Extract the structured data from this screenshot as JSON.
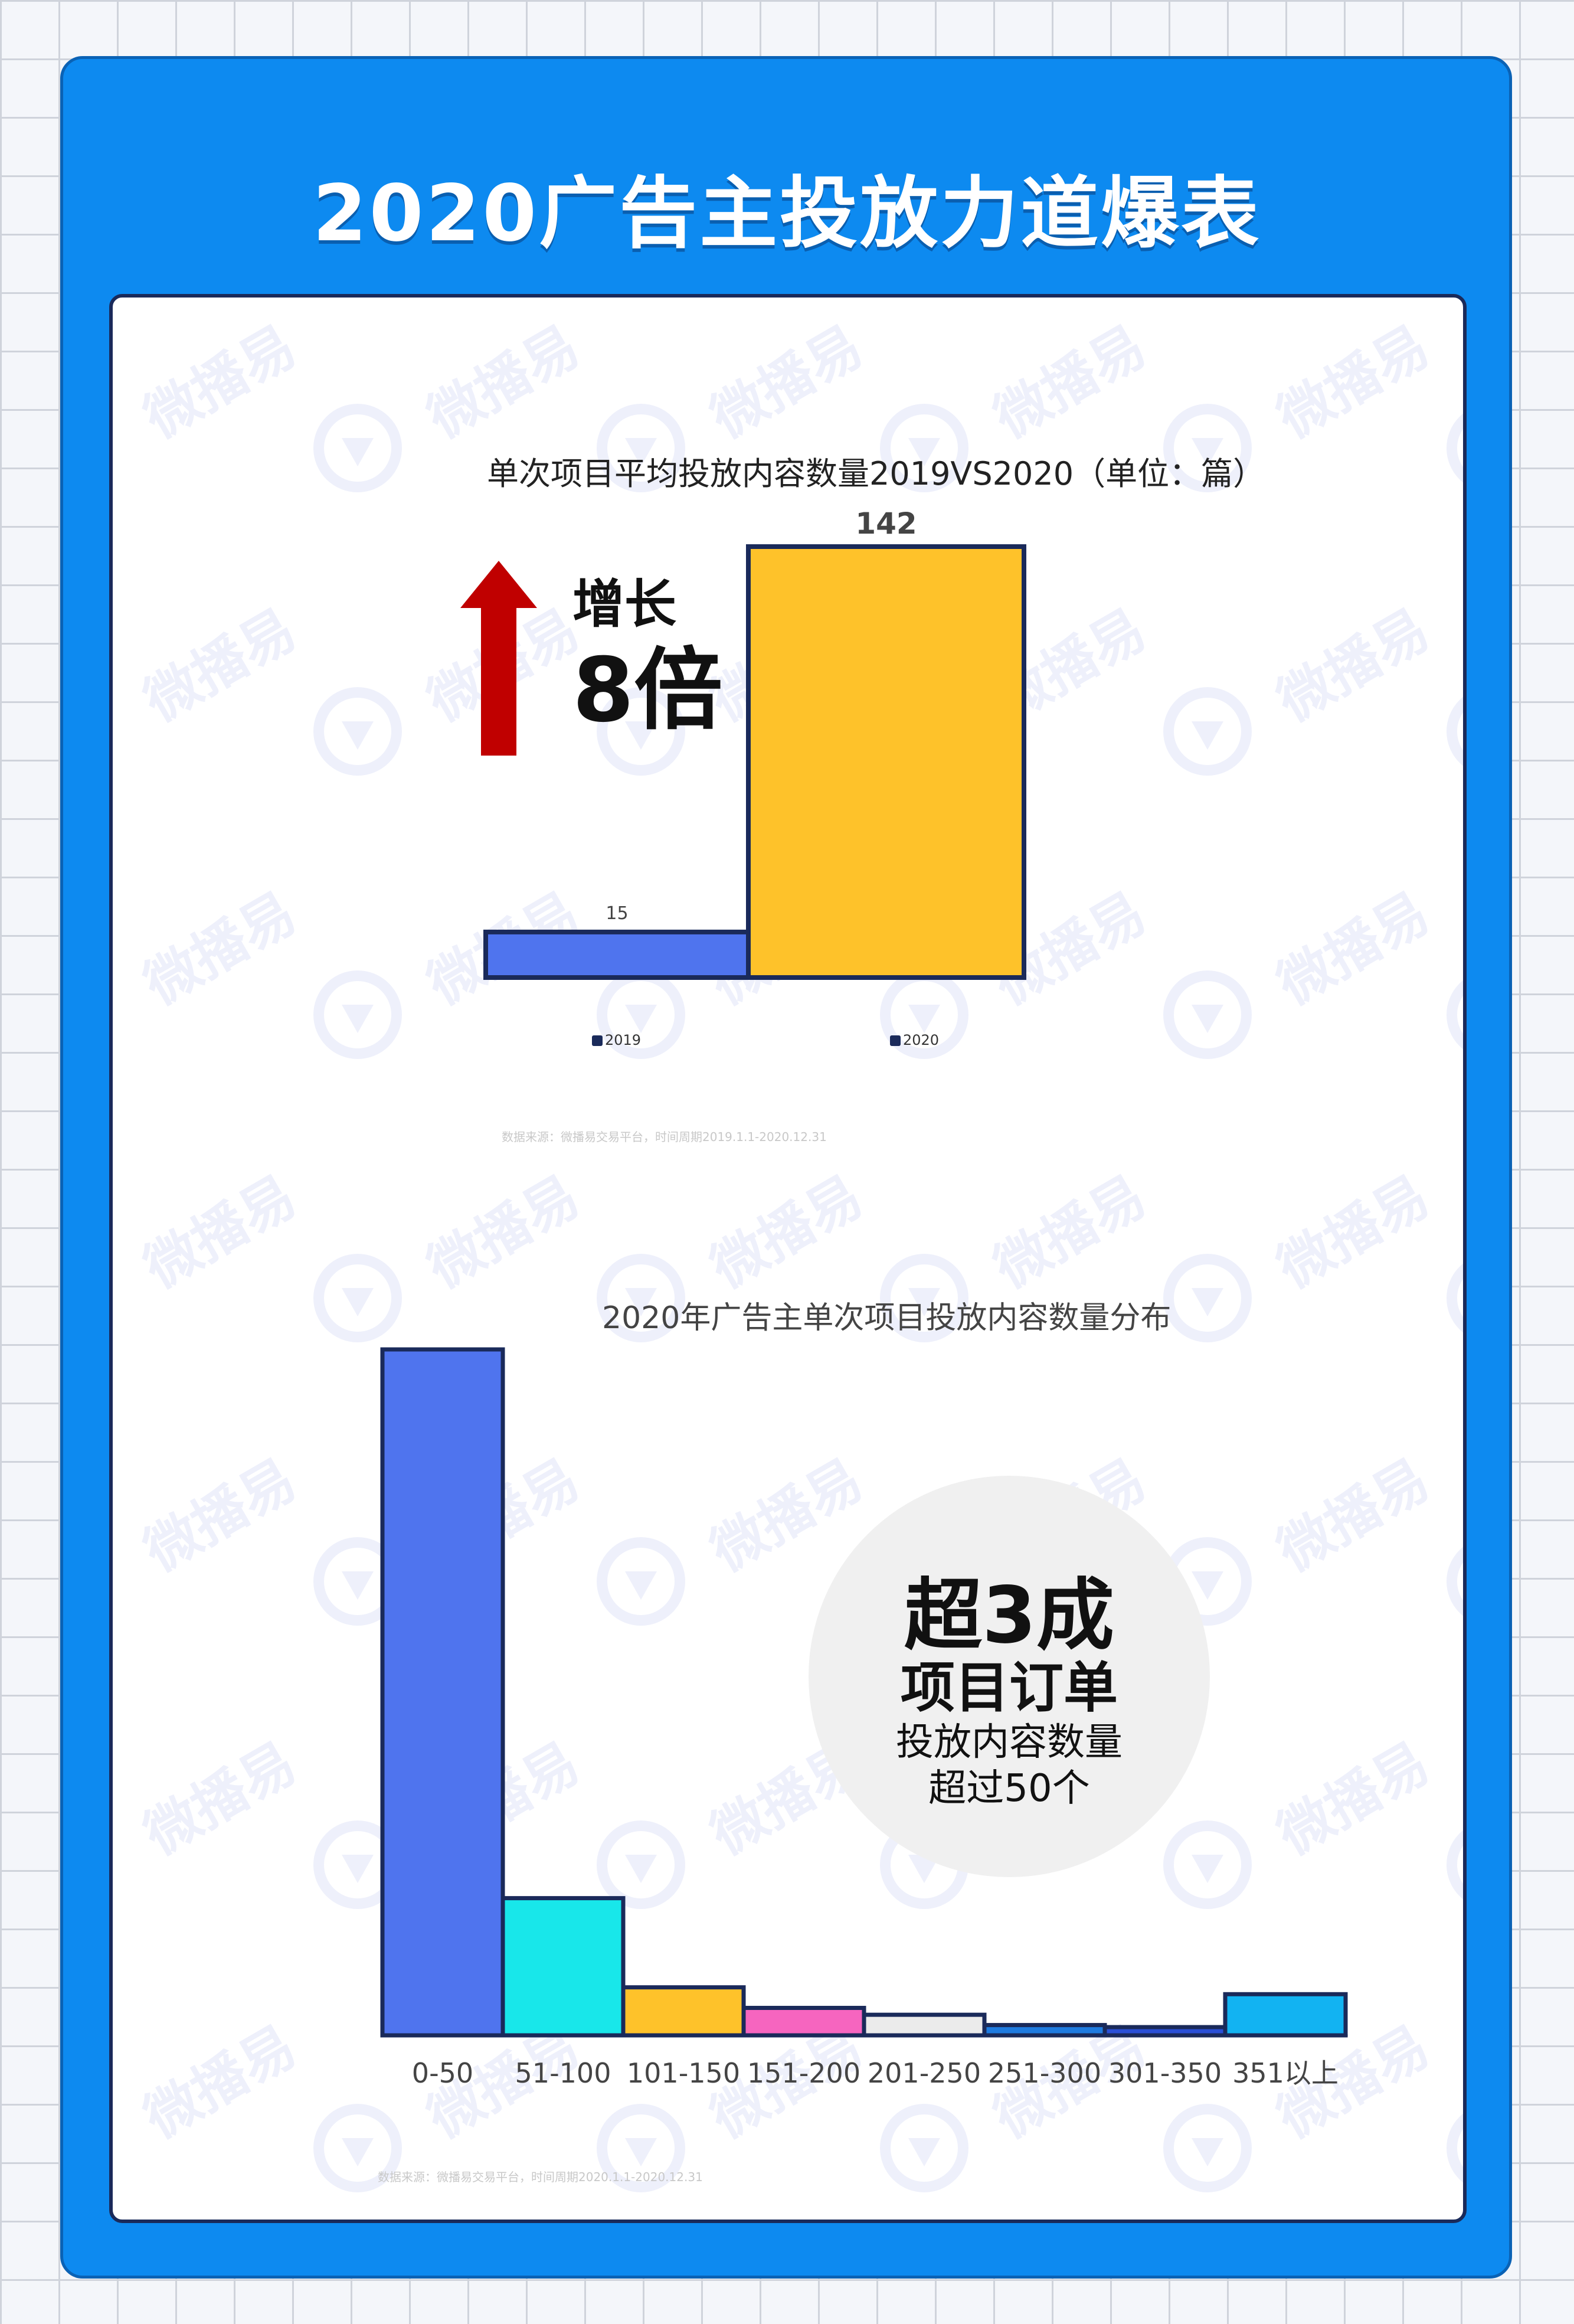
{
  "page": {
    "title": "2020广告主投放力道爆表"
  },
  "watermark": {
    "text": "微播易"
  },
  "chart_data": [
    {
      "type": "bar",
      "title": "单次项目平均投放内容数量2019VS2020（单位：篇）",
      "categories": [
        "2019",
        "2020"
      ],
      "values": [
        15,
        142
      ],
      "colors": [
        "#4f74ee",
        "#fec22a"
      ],
      "ylim": [
        0,
        142
      ],
      "legend": [
        "2019",
        "2020"
      ],
      "legend_position": "bottom",
      "grid": false
    },
    {
      "type": "bar",
      "title": "2020年广告主单次项目投放内容数量分布",
      "categories": [
        "0-50",
        "51-100",
        "101-150",
        "151-200",
        "201-250",
        "251-300",
        "301-350",
        "351以上"
      ],
      "values": [
        100,
        20,
        7,
        4,
        3,
        1.5,
        1.2,
        6
      ],
      "colors": [
        "#4f74ee",
        "#18e7ea",
        "#fec22a",
        "#f665bf",
        "#ebebeb",
        "#1e7be0",
        "#2a4fd6",
        "#12b3f2"
      ],
      "grid": false
    }
  ],
  "callout1": {
    "line1": "增长",
    "line2": "8倍",
    "arrow_color": "#c00000"
  },
  "callout2": {
    "line1": "超3成",
    "line2": "项目订单",
    "line3": "投放内容数量",
    "line4": "超过50个"
  },
  "sources": {
    "chart1": "数据来源：微播易交易平台，时间周期2019.1.1-2020.12.31",
    "chart2": "数据来源：微播易交易平台，时间周期2020.1.1-2020.12.31"
  }
}
